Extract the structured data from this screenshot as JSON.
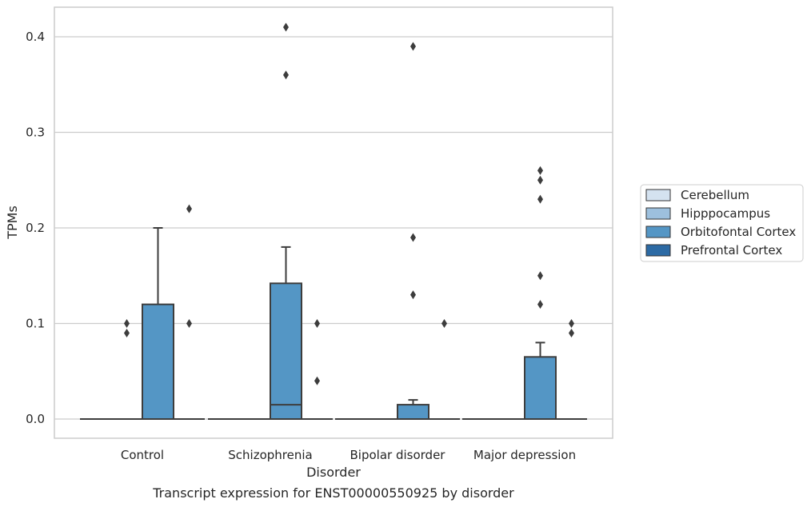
{
  "caption": "Transcript expression for ENST00000550925 by disorder",
  "chart_data": {
    "type": "box",
    "title": "",
    "xlabel": "Disorder",
    "ylabel": "TPMs",
    "ylim": [
      -0.02,
      0.43
    ],
    "yticks": [
      0.0,
      0.1,
      0.2,
      0.3,
      0.4
    ],
    "ytick_labels": [
      "0.0",
      "0.1",
      "0.2",
      "0.3",
      "0.4"
    ],
    "grid": "horizontal",
    "legend_position": "right",
    "categories": [
      "Control",
      "Schizophrenia",
      "Bipolar disorder",
      "Major depression"
    ],
    "series": [
      {
        "name": "Cerebellum",
        "color": "#d4e2f0",
        "boxes": [
          {
            "q1": 0,
            "median": 0,
            "q3": 0,
            "whisker_low": 0,
            "whisker_high": 0,
            "outliers": []
          },
          {
            "q1": 0,
            "median": 0,
            "q3": 0,
            "whisker_low": 0,
            "whisker_high": 0,
            "outliers": []
          },
          {
            "q1": 0,
            "median": 0,
            "q3": 0,
            "whisker_low": 0,
            "whisker_high": 0,
            "outliers": []
          },
          {
            "q1": 0,
            "median": 0,
            "q3": 0,
            "whisker_low": 0,
            "whisker_high": 0,
            "outliers": []
          }
        ]
      },
      {
        "name": "Hipppocampus",
        "color": "#9dc0de",
        "boxes": [
          {
            "q1": 0,
            "median": 0,
            "q3": 0,
            "whisker_low": 0,
            "whisker_high": 0,
            "outliers": [
              0.09,
              0.1
            ]
          },
          {
            "q1": 0,
            "median": 0,
            "q3": 0,
            "whisker_low": 0,
            "whisker_high": 0,
            "outliers": []
          },
          {
            "q1": 0,
            "median": 0,
            "q3": 0,
            "whisker_low": 0,
            "whisker_high": 0,
            "outliers": []
          },
          {
            "q1": 0,
            "median": 0,
            "q3": 0,
            "whisker_low": 0,
            "whisker_high": 0,
            "outliers": []
          }
        ]
      },
      {
        "name": "Orbitofontal Cortex",
        "color": "#5496c5",
        "boxes": [
          {
            "q1": 0,
            "median": 0,
            "q3": 0.12,
            "whisker_low": 0,
            "whisker_high": 0.2,
            "outliers": []
          },
          {
            "q1": 0,
            "median": 0.015,
            "q3": 0.142,
            "whisker_low": 0,
            "whisker_high": 0.18,
            "outliers": [
              0.36,
              0.41
            ]
          },
          {
            "q1": 0,
            "median": 0,
            "q3": 0.015,
            "whisker_low": 0,
            "whisker_high": 0.02,
            "outliers": [
              0.13,
              0.19,
              0.39
            ]
          },
          {
            "q1": 0,
            "median": 0,
            "q3": 0.065,
            "whisker_low": 0,
            "whisker_high": 0.08,
            "outliers": [
              0.12,
              0.15,
              0.23,
              0.25,
              0.26
            ]
          }
        ]
      },
      {
        "name": "Prefrontal Cortex",
        "color": "#2c6aa4",
        "boxes": [
          {
            "q1": 0,
            "median": 0,
            "q3": 0,
            "whisker_low": 0,
            "whisker_high": 0,
            "outliers": [
              0.1,
              0.22
            ]
          },
          {
            "q1": 0,
            "median": 0,
            "q3": 0,
            "whisker_low": 0,
            "whisker_high": 0,
            "outliers": [
              0.04,
              0.1
            ]
          },
          {
            "q1": 0,
            "median": 0,
            "q3": 0,
            "whisker_low": 0,
            "whisker_high": 0,
            "outliers": [
              0.1
            ]
          },
          {
            "q1": 0,
            "median": 0,
            "q3": 0,
            "whisker_low": 0,
            "whisker_high": 0,
            "outliers": [
              0.09,
              0.1
            ]
          }
        ]
      }
    ]
  }
}
